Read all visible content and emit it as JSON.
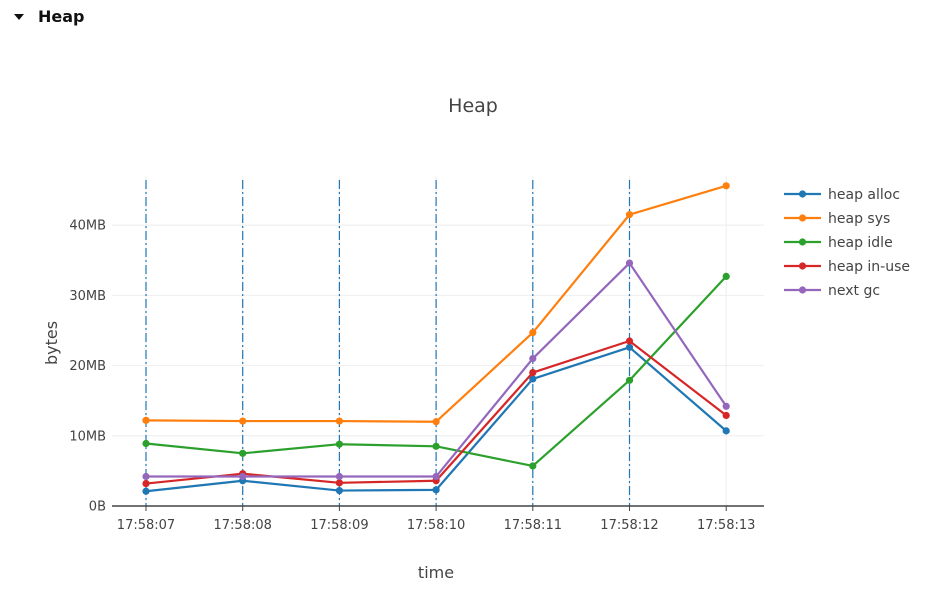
{
  "section": {
    "title": "Heap",
    "icon": "caret-down-icon"
  },
  "chart_data": {
    "type": "line",
    "title": "Heap",
    "xlabel": "time",
    "ylabel": "bytes",
    "categories": [
      "17:58:07",
      "17:58:08",
      "17:58:09",
      "17:58:10",
      "17:58:11",
      "17:58:12",
      "17:58:13"
    ],
    "ylim": [
      0,
      47
    ],
    "yticks": [
      0,
      10,
      20,
      30,
      40
    ],
    "ytick_labels": [
      "0B",
      "10MB",
      "20MB",
      "30MB",
      "40MB"
    ],
    "gc_markers": [
      "17:58:07",
      "17:58:08",
      "17:58:09",
      "17:58:10",
      "17:58:11",
      "17:58:12"
    ],
    "gc_marker_color": "#1f77b4",
    "legend_position": "top-right",
    "grid": true,
    "series": [
      {
        "name": "heap alloc",
        "color": "#1f77b4",
        "values": [
          2.1,
          3.6,
          2.2,
          2.3,
          18.1,
          22.6,
          10.7
        ]
      },
      {
        "name": "heap sys",
        "color": "#ff7f0e",
        "values": [
          12.2,
          12.1,
          12.1,
          12.0,
          24.7,
          41.5,
          45.6
        ]
      },
      {
        "name": "heap idle",
        "color": "#2ca02c",
        "values": [
          8.9,
          7.5,
          8.8,
          8.5,
          5.7,
          17.9,
          32.7
        ]
      },
      {
        "name": "heap in-use",
        "color": "#d62728",
        "values": [
          3.2,
          4.6,
          3.3,
          3.6,
          19.0,
          23.5,
          12.9
        ]
      },
      {
        "name": "next gc",
        "color": "#9467bd",
        "values": [
          4.2,
          4.2,
          4.2,
          4.2,
          21.0,
          34.6,
          14.2
        ]
      }
    ]
  }
}
